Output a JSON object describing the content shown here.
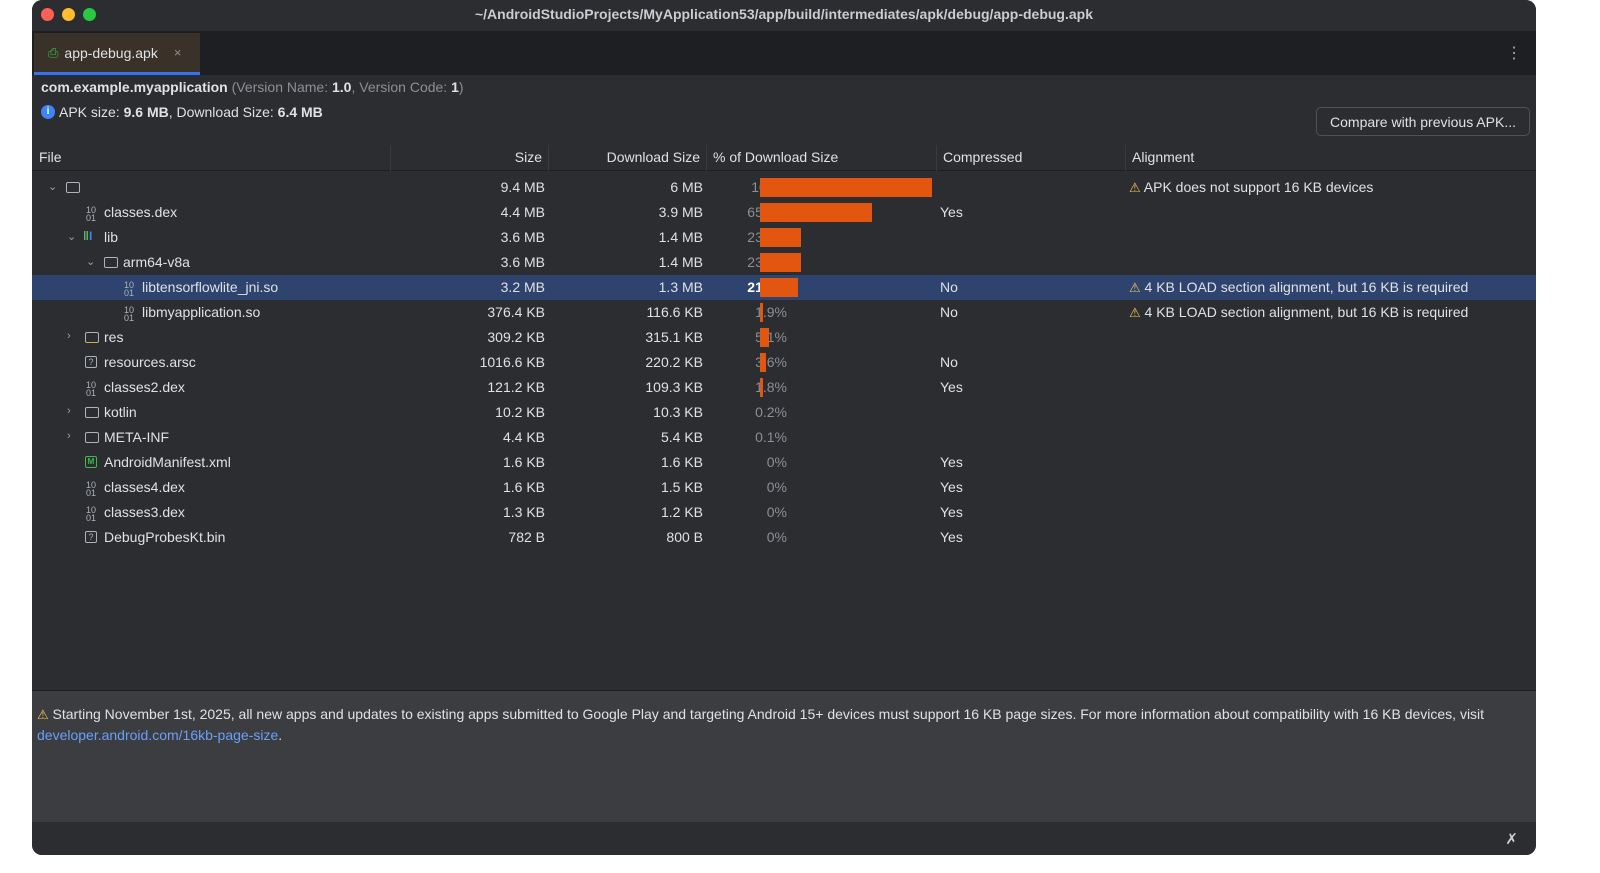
{
  "window": {
    "title": "~/AndroidStudioProjects/MyApplication53/app/build/intermediates/apk/debug/app-debug.apk"
  },
  "tab": {
    "label": "app-debug.apk",
    "close": "×"
  },
  "info": {
    "package": "com.example.myapplication",
    "version_name_label": "(Version Name: ",
    "version_name": "1.0",
    "version_code_label": ", Version Code: ",
    "version_code": "1",
    "close_paren": ")",
    "apk_size_label": "APK size: ",
    "apk_size": "9.6 MB",
    "download_size_label": ", Download Size: ",
    "download_size": "6.4 MB"
  },
  "compare_button": "Compare with previous APK...",
  "columns": [
    "File",
    "Size",
    "Download Size",
    "% of Download Size",
    "Compressed",
    "Alignment"
  ],
  "bar_color": "#e2560f",
  "rows": [
    {
      "name": "",
      "icon": "folder",
      "depth": 0,
      "chevron": "down",
      "size": "9.4 MB",
      "download": "6 MB",
      "pct": "100%",
      "pct_value": 100,
      "compressed": "",
      "alignment": "APK does not support 16 KB devices"
    },
    {
      "name": "classes.dex",
      "icon": "binary",
      "depth": 1,
      "size": "4.4 MB",
      "download": "3.9 MB",
      "pct": "65.4%",
      "pct_value": 65.4,
      "compressed": "Yes",
      "alignment": ""
    },
    {
      "name": "lib",
      "icon": "native-lib",
      "depth": 1,
      "chevron": "down",
      "size": "3.6 MB",
      "download": "1.4 MB",
      "pct": "23.8%",
      "pct_value": 23.8,
      "compressed": "",
      "alignment": ""
    },
    {
      "name": "arm64-v8a",
      "icon": "folder",
      "depth": 2,
      "chevron": "down",
      "size": "3.6 MB",
      "download": "1.4 MB",
      "pct": "23.8%",
      "pct_value": 23.8,
      "compressed": "",
      "alignment": ""
    },
    {
      "name": "libtensorflowlite_jni.so",
      "icon": "binary",
      "depth": 3,
      "selected": true,
      "size": "3.2 MB",
      "download": "1.3 MB",
      "pct": "21.9%",
      "pct_value": 21.9,
      "compressed": "No",
      "alignment": "4 KB LOAD section alignment, but 16 KB is required"
    },
    {
      "name": "libmyapplication.so",
      "icon": "binary",
      "depth": 3,
      "size": "376.4 KB",
      "download": "116.6 KB",
      "pct": "1.9%",
      "pct_value": 1.9,
      "compressed": "No",
      "alignment": "4 KB LOAD section alignment, but 16 KB is required"
    },
    {
      "name": "res",
      "icon": "res-folder",
      "depth": 1,
      "chevron": "right",
      "size": "309.2 KB",
      "download": "315.1 KB",
      "pct": "5.1%",
      "pct_value": 5.1,
      "compressed": "",
      "alignment": ""
    },
    {
      "name": "resources.arsc",
      "icon": "unknown",
      "depth": 1,
      "size": "1016.6 KB",
      "download": "220.2 KB",
      "pct": "3.6%",
      "pct_value": 3.6,
      "compressed": "No",
      "alignment": ""
    },
    {
      "name": "classes2.dex",
      "icon": "binary",
      "depth": 1,
      "size": "121.2 KB",
      "download": "109.3 KB",
      "pct": "1.8%",
      "pct_value": 1.8,
      "compressed": "Yes",
      "alignment": ""
    },
    {
      "name": "kotlin",
      "icon": "folder",
      "depth": 1,
      "chevron": "right",
      "size": "10.2 KB",
      "download": "10.3 KB",
      "pct": "0.2%",
      "pct_value": 0.2,
      "compressed": "",
      "alignment": ""
    },
    {
      "name": "META-INF",
      "icon": "folder",
      "depth": 1,
      "chevron": "right",
      "size": "4.4 KB",
      "download": "5.4 KB",
      "pct": "0.1%",
      "pct_value": 0.1,
      "compressed": "",
      "alignment": ""
    },
    {
      "name": "AndroidManifest.xml",
      "icon": "manifest",
      "depth": 1,
      "size": "1.6 KB",
      "download": "1.6 KB",
      "pct": "0%",
      "pct_value": 0,
      "compressed": "Yes",
      "alignment": ""
    },
    {
      "name": "classes4.dex",
      "icon": "binary",
      "depth": 1,
      "size": "1.6 KB",
      "download": "1.5 KB",
      "pct": "0%",
      "pct_value": 0,
      "compressed": "Yes",
      "alignment": ""
    },
    {
      "name": "classes3.dex",
      "icon": "binary",
      "depth": 1,
      "size": "1.3 KB",
      "download": "1.2 KB",
      "pct": "0%",
      "pct_value": 0,
      "compressed": "Yes",
      "alignment": ""
    },
    {
      "name": "DebugProbesKt.bin",
      "icon": "unknown",
      "depth": 1,
      "size": "782 B",
      "download": "800 B",
      "pct": "0%",
      "pct_value": 0,
      "compressed": "Yes",
      "alignment": ""
    }
  ],
  "footer": {
    "text": "Starting November 1st, 2025, all new apps and updates to existing apps submitted to Google Play and targeting Android 15+ devices must support 16 KB page sizes. For more information about compatibility with 16 KB devices, visit ",
    "link": "developer.android.com/16kb-page-size",
    "end": "."
  }
}
